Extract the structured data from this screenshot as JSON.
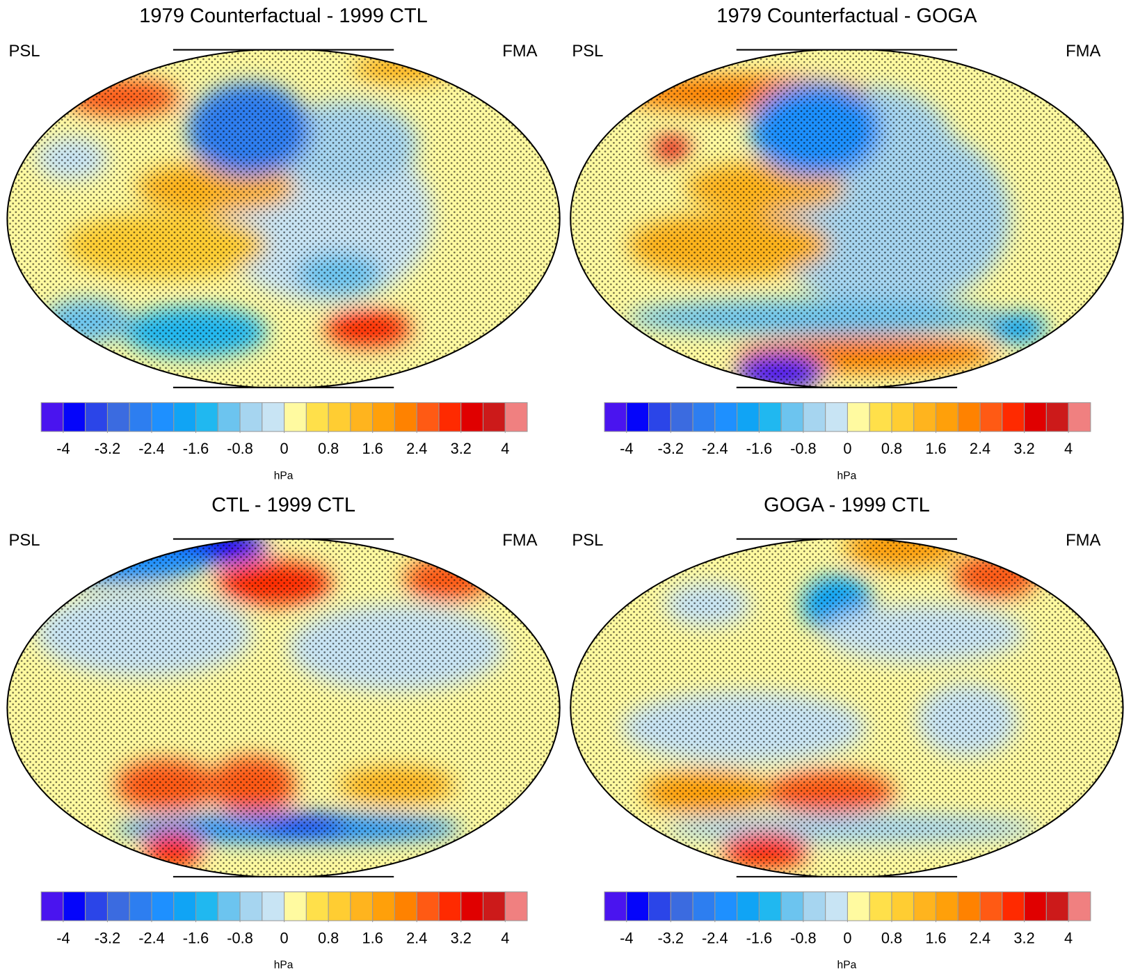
{
  "panels": [
    {
      "title": "1979 Counterfactual - 1999 CTL",
      "left_label": "PSL",
      "right_label": "FMA",
      "colorbar": {
        "ticks": [
          -4,
          -3.2,
          -2.4,
          -1.6,
          -0.8,
          0,
          0.8,
          1.6,
          2.4,
          3.2,
          4
        ],
        "unit": "hPa"
      }
    },
    {
      "title": "1979 Counterfactual - GOGA",
      "left_label": "PSL",
      "right_label": "FMA",
      "colorbar": {
        "ticks": [
          -4,
          -3.2,
          -2.4,
          -1.6,
          -0.8,
          0,
          0.8,
          1.6,
          2.4,
          3.2,
          4
        ],
        "unit": "hPa"
      }
    },
    {
      "title": "CTL - 1999 CTL",
      "left_label": "PSL",
      "right_label": "FMA",
      "colorbar": {
        "ticks": [
          -4,
          -3.2,
          -2.4,
          -1.6,
          -0.8,
          0,
          0.8,
          1.6,
          2.4,
          3.2,
          4
        ],
        "unit": "hPa"
      }
    },
    {
      "title": "GOGA - 1999 CTL",
      "left_label": "PSL",
      "right_label": "FMA",
      "colorbar": {
        "ticks": [
          -4,
          -3.2,
          -2.4,
          -1.6,
          -0.8,
          0,
          0.8,
          1.6,
          2.4,
          3.2,
          4
        ],
        "unit": "hPa"
      }
    }
  ],
  "colors": [
    "#4a14ef",
    "#0505fa",
    "#2b45e8",
    "#3b6be0",
    "#2d7ef0",
    "#1e90ff",
    "#10a4f5",
    "#20b8f0",
    "#6cc4ef",
    "#a6d5f0",
    "#c8e4f4",
    "#fffaa0",
    "#ffe04a",
    "#ffcd32",
    "#ffb41e",
    "#ffa00a",
    "#ff8200",
    "#ff5a14",
    "#ff2a00",
    "#e00000",
    "#cc1a1a",
    "#f08080"
  ]
}
